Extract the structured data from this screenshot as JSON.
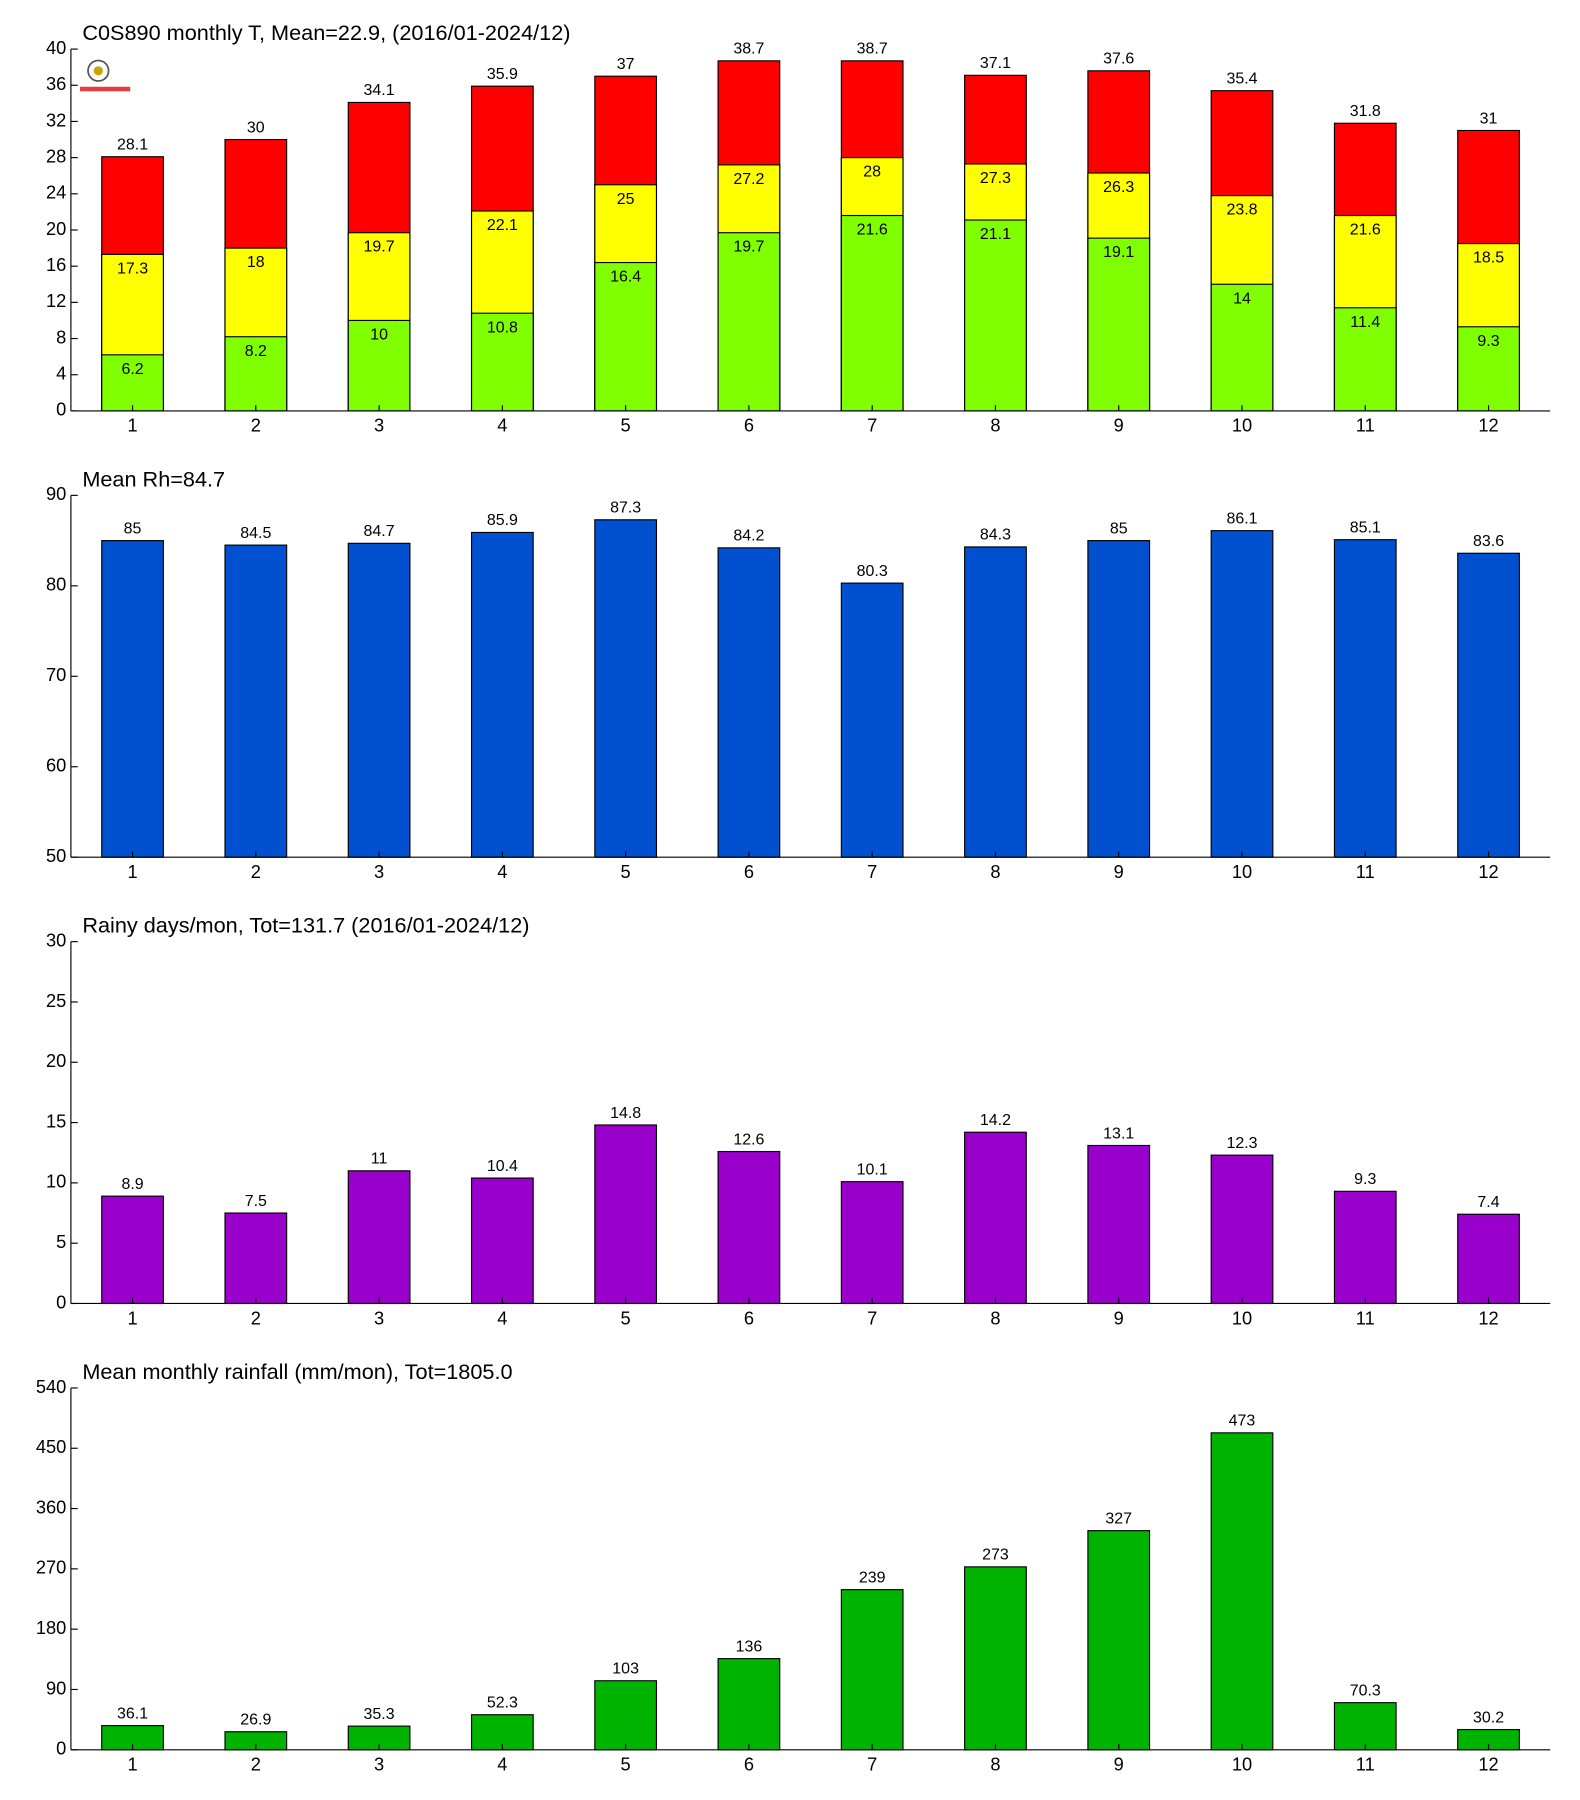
{
  "chart_data": [
    {
      "type": "bar",
      "title": "C0S890 monthly T, Mean=22.9, (2016/01-2024/12)",
      "categories": [
        "1",
        "2",
        "3",
        "4",
        "5",
        "6",
        "7",
        "8",
        "9",
        "10",
        "11",
        "12"
      ],
      "series": [
        {
          "color": "#ff0000",
          "values": [
            28.1,
            30,
            34.1,
            35.9,
            37,
            38.7,
            38.7,
            37.1,
            37.6,
            35.4,
            31.8,
            31
          ]
        },
        {
          "color": "#ffff00",
          "values": [
            17.3,
            18,
            19.7,
            22.1,
            25,
            27.2,
            28,
            27.3,
            26.3,
            23.8,
            21.6,
            18.5
          ]
        },
        {
          "color": "#80ff00",
          "values": [
            6.2,
            8.2,
            10,
            10.8,
            16.4,
            19.7,
            21.6,
            21.1,
            19.1,
            14,
            11.4,
            9.3
          ]
        }
      ],
      "ylim": [
        0,
        40
      ],
      "yticks": [
        0,
        4,
        8,
        12,
        16,
        20,
        24,
        28,
        32,
        36,
        40
      ]
    },
    {
      "type": "bar",
      "title": "Mean Rh=84.7",
      "categories": [
        "1",
        "2",
        "3",
        "4",
        "5",
        "6",
        "7",
        "8",
        "9",
        "10",
        "11",
        "12"
      ],
      "series": [
        {
          "color": "#0050d0",
          "values": [
            85,
            84.5,
            84.7,
            85.9,
            87.3,
            84.2,
            80.3,
            84.3,
            85,
            86.1,
            85.1,
            83.6
          ]
        }
      ],
      "ylim": [
        50,
        90
      ],
      "yticks": [
        50,
        60,
        70,
        80,
        90
      ]
    },
    {
      "type": "bar",
      "title": "Rainy days/mon, Tot=131.7 (2016/01-2024/12)",
      "categories": [
        "1",
        "2",
        "3",
        "4",
        "5",
        "6",
        "7",
        "8",
        "9",
        "10",
        "11",
        "12"
      ],
      "series": [
        {
          "color": "#9900cc",
          "values": [
            8.9,
            7.5,
            11,
            10.4,
            14.8,
            12.6,
            10.1,
            14.2,
            13.1,
            12.3,
            9.3,
            7.4
          ]
        }
      ],
      "ylim": [
        0,
        30
      ],
      "yticks": [
        0,
        5,
        10,
        15,
        20,
        25,
        30
      ]
    },
    {
      "type": "bar",
      "title": "Mean monthly rainfall (mm/mon), Tot=1805.0",
      "categories": [
        "1",
        "2",
        "3",
        "4",
        "5",
        "6",
        "7",
        "8",
        "9",
        "10",
        "11",
        "12"
      ],
      "series": [
        {
          "color": "#00b300",
          "values": [
            36.1,
            26.9,
            35.3,
            52.3,
            103,
            136,
            239,
            273,
            327,
            473,
            70.3,
            30.2
          ]
        }
      ],
      "ylim": [
        0,
        540
      ],
      "yticks": [
        0,
        90,
        180,
        270,
        360,
        450,
        540
      ]
    }
  ]
}
